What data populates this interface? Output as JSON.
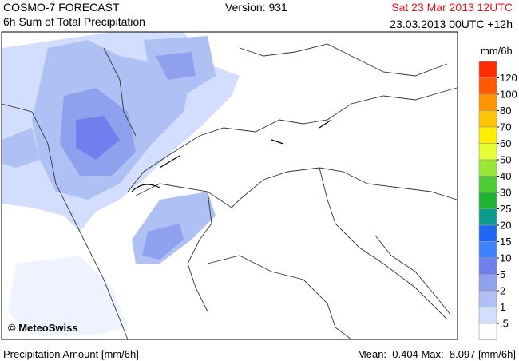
{
  "header": {
    "title": "COSMO-7 FORECAST",
    "subtitle": "6h Sum of Total Precipitation",
    "version": "Version: 931",
    "valid_time": "Sat 23 Mar 2013 12UTC",
    "run": "23.03.2013 00UTC +12h"
  },
  "map": {
    "credit": "© MeteoSwiss"
  },
  "legend": {
    "unit": "mm/6h",
    "levels": [
      120,
      100,
      80,
      70,
      60,
      50,
      40,
      30,
      25,
      20,
      15,
      10,
      5,
      2,
      1,
      {
        "value": 0.5,
        "label": ".5"
      }
    ],
    "colors": [
      "#ff2a00",
      "#ff5a00",
      "#ff9400",
      "#ffc400",
      "#ffee00",
      "#e6ff33",
      "#99e633",
      "#4dcc33",
      "#1eb432",
      "#0f9a8f",
      "#1f66f0",
      "#3d82ff",
      "#6f80ee",
      "#8fa0ef",
      "#afc0f4",
      "#d3deff",
      "#ffffff"
    ]
  },
  "footer": {
    "label": "Precipitation Amount [mm/6h]",
    "mean_label": "Mean:",
    "mean": 0.404,
    "max_label": "Max:",
    "max": 8.097,
    "unit": "[mm/6h]"
  }
}
